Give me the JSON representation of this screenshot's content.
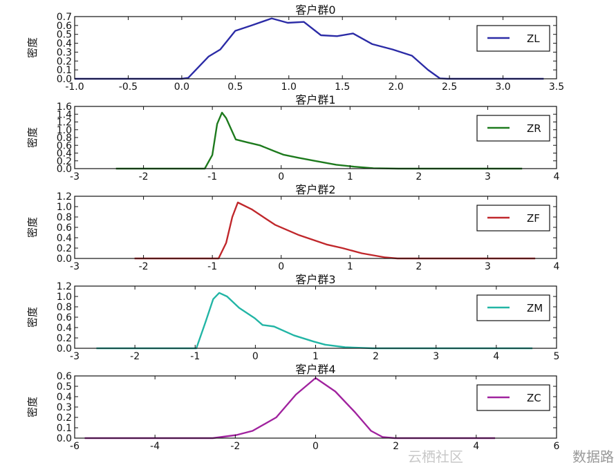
{
  "chart_data": [
    {
      "type": "line",
      "title": "客户群0",
      "ylabel": "密度",
      "xlim": [
        -1,
        3.5
      ],
      "ylim": [
        0,
        0.7
      ],
      "xticks": [
        "-1.0",
        "-0.5",
        "0.0",
        "0.5",
        "1.0",
        "1.5",
        "2.0",
        "2.5",
        "3.0",
        "3.5"
      ],
      "yticks": [
        "0.0",
        "0.1",
        "0.2",
        "0.3",
        "0.4",
        "0.5",
        "0.6",
        "0.7"
      ],
      "legend": "top-right",
      "series": [
        {
          "name": "ZL",
          "color": "#2b2ba6",
          "x": [
            -1,
            0,
            0.06,
            0.25,
            0.36,
            0.5,
            0.65,
            0.84,
            0.99,
            1.14,
            1.3,
            1.45,
            1.6,
            1.78,
            1.97,
            2.15,
            2.3,
            2.41,
            2.48,
            3.38
          ],
          "y": [
            0,
            0,
            0.01,
            0.25,
            0.33,
            0.54,
            0.6,
            0.68,
            0.63,
            0.64,
            0.49,
            0.48,
            0.51,
            0.39,
            0.33,
            0.26,
            0.1,
            0.005,
            0,
            0
          ]
        }
      ]
    },
    {
      "type": "line",
      "title": "客户群1",
      "ylabel": "密度",
      "xlim": [
        -3,
        4
      ],
      "ylim": [
        0,
        1.6
      ],
      "xticks": [
        "-3",
        "-2",
        "-1",
        "0",
        "1",
        "2",
        "3",
        "4"
      ],
      "yticks": [
        "0.0",
        "0.2",
        "0.4",
        "0.6",
        "0.8",
        "1.0",
        "1.2",
        "1.4",
        "1.6"
      ],
      "legend": "top-right",
      "series": [
        {
          "name": "ZR",
          "color": "#1d7a1d",
          "x": [
            -2.4,
            -1.11,
            -1.0,
            -0.93,
            -0.86,
            -0.8,
            -0.66,
            -0.5,
            -0.31,
            -0.1,
            0.03,
            0.25,
            0.49,
            0.8,
            1.06,
            1.34,
            1.7,
            3.5
          ],
          "y": [
            0,
            0,
            0.35,
            1.15,
            1.44,
            1.3,
            0.75,
            0.68,
            0.6,
            0.45,
            0.36,
            0.28,
            0.2,
            0.1,
            0.05,
            0.01,
            0,
            0
          ]
        }
      ]
    },
    {
      "type": "line",
      "title": "客户群2",
      "ylabel": "密度",
      "xlim": [
        -3,
        4
      ],
      "ylim": [
        0,
        1.2
      ],
      "xticks": [
        "-3",
        "-2",
        "-1",
        "0",
        "1",
        "2",
        "3",
        "4"
      ],
      "yticks": [
        "0.0",
        "0.2",
        "0.4",
        "0.6",
        "0.8",
        "1.0",
        "1.2"
      ],
      "legend": "top-right",
      "series": [
        {
          "name": "ZF",
          "color": "#c0272b",
          "x": [
            -2.13,
            -0.91,
            -0.8,
            -0.71,
            -0.63,
            -0.43,
            -0.09,
            0.26,
            0.66,
            0.89,
            1.17,
            1.51,
            1.69,
            3.69
          ],
          "y": [
            0,
            0,
            0.3,
            0.8,
            1.08,
            0.95,
            0.65,
            0.45,
            0.27,
            0.2,
            0.1,
            0.02,
            0,
            0
          ]
        }
      ]
    },
    {
      "type": "line",
      "title": "客户群3",
      "ylabel": "密度",
      "xlim": [
        -3,
        5
      ],
      "ylim": [
        0,
        1.2
      ],
      "xticks": [
        "-3",
        "-2",
        "-1",
        "0",
        "1",
        "2",
        "3",
        "4",
        "5"
      ],
      "yticks": [
        "0.0",
        "0.2",
        "0.4",
        "0.6",
        "0.8",
        "1.0",
        "1.2"
      ],
      "legend": "top-right",
      "series": [
        {
          "name": "ZM",
          "color": "#22b5a5",
          "x": [
            -2.64,
            -0.98,
            -0.83,
            -0.7,
            -0.6,
            -0.47,
            -0.27,
            -0.01,
            0.12,
            0.31,
            0.64,
            0.97,
            1.16,
            1.49,
            1.95,
            4.6
          ],
          "y": [
            0,
            0,
            0.5,
            0.95,
            1.07,
            1.0,
            0.78,
            0.58,
            0.45,
            0.42,
            0.25,
            0.13,
            0.07,
            0.02,
            0,
            0
          ]
        }
      ]
    },
    {
      "type": "line",
      "title": "客户群4",
      "ylabel": "密度",
      "xlim": [
        -6,
        6
      ],
      "ylim": [
        0,
        0.6
      ],
      "xticks": [
        "-6",
        "-4",
        "-2",
        "0",
        "2",
        "4",
        "6"
      ],
      "yticks": [
        "0.0",
        "0.1",
        "0.2",
        "0.3",
        "0.4",
        "0.5",
        "0.6"
      ],
      "legend": "top-right",
      "series": [
        {
          "name": "ZC",
          "color": "#a0229e",
          "x": [
            -5.75,
            -2.56,
            -1.97,
            -1.57,
            -0.98,
            -0.49,
            0,
            0.49,
            0.98,
            1.38,
            1.67,
            1.97,
            4.47
          ],
          "y": [
            0,
            0,
            0.03,
            0.07,
            0.2,
            0.42,
            0.58,
            0.45,
            0.25,
            0.07,
            0.01,
            0,
            0
          ]
        }
      ]
    }
  ],
  "watermark": {
    "brand": "数据路",
    "site": "云栖社区"
  }
}
